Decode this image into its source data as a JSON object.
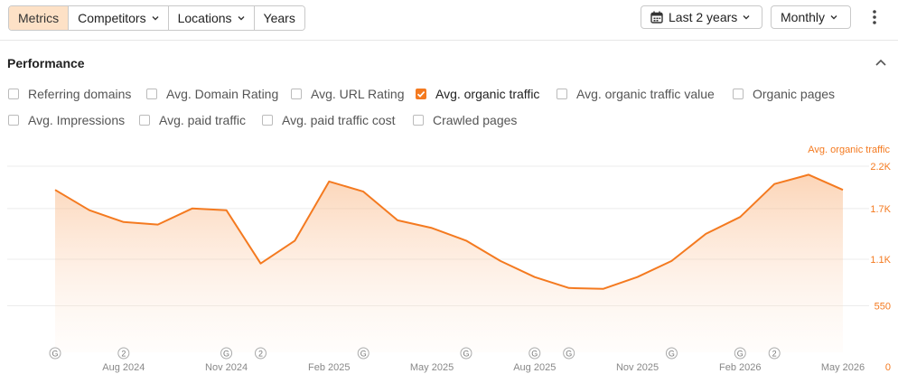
{
  "toolbar": {
    "tabs": [
      {
        "label": "Metrics",
        "active": true
      },
      {
        "label": "Competitors",
        "dropdown": true
      },
      {
        "label": "Locations",
        "dropdown": true
      },
      {
        "label": "Years"
      }
    ],
    "date_range": "Last 2 years",
    "interval": "Monthly"
  },
  "performance": {
    "title": "Performance",
    "metrics": [
      {
        "label": "Referring domains",
        "checked": false
      },
      {
        "label": "Avg. Domain Rating",
        "checked": false
      },
      {
        "label": "Avg. URL Rating",
        "checked": false
      },
      {
        "label": "Avg. organic traffic",
        "checked": true
      },
      {
        "label": "Avg. organic traffic value",
        "checked": false
      },
      {
        "label": "Organic pages",
        "checked": false
      },
      {
        "label": "Avg. Impressions",
        "checked": false
      },
      {
        "label": "Avg. paid traffic",
        "checked": false
      },
      {
        "label": "Avg. paid traffic cost",
        "checked": false
      },
      {
        "label": "Crawled pages",
        "checked": false
      }
    ]
  },
  "chart_data": {
    "type": "area",
    "series_label": "Avg. organic traffic",
    "color": "#f47a20",
    "y_ticks": [
      "0",
      "550",
      "1.1K",
      "1.7K",
      "2.2K"
    ],
    "y_tick_values": [
      0,
      550,
      1100,
      1700,
      2200
    ],
    "ylim": [
      0,
      2200
    ],
    "x_labels": [
      "Aug 2024",
      "Nov 2024",
      "Feb 2025",
      "May 2025",
      "Aug 2025",
      "Nov 2025",
      "Feb 2026",
      "May 2026"
    ],
    "x": [
      "2024-06",
      "2024-07",
      "2024-08",
      "2024-09",
      "2024-10",
      "2024-11",
      "2024-12",
      "2025-01",
      "2025-02",
      "2025-03",
      "2025-04",
      "2025-05",
      "2025-06",
      "2025-07",
      "2025-08",
      "2025-09",
      "2025-10",
      "2025-11",
      "2025-12",
      "2026-01",
      "2026-02",
      "2026-03",
      "2026-04",
      "2026-05"
    ],
    "values": [
      1920,
      1680,
      1540,
      1510,
      1700,
      1680,
      1050,
      1320,
      2020,
      1900,
      1560,
      1470,
      1320,
      1080,
      890,
      760,
      750,
      890,
      1080,
      1400,
      1600,
      1990,
      2100,
      1920
    ],
    "annotations": [
      {
        "label": "G",
        "x": "2024-06"
      },
      {
        "label": "2",
        "x": "2024-08"
      },
      {
        "label": "G",
        "x": "2024-11"
      },
      {
        "label": "2",
        "x": "2024-12"
      },
      {
        "label": "G",
        "x": "2025-03"
      },
      {
        "label": "G",
        "x": "2025-06"
      },
      {
        "label": "G",
        "x": "2025-08"
      },
      {
        "label": "G",
        "x": "2025-09"
      },
      {
        "label": "G",
        "x": "2025-12"
      },
      {
        "label": "G",
        "x": "2026-02"
      },
      {
        "label": "2",
        "x": "2026-03"
      }
    ],
    "grid": true
  }
}
